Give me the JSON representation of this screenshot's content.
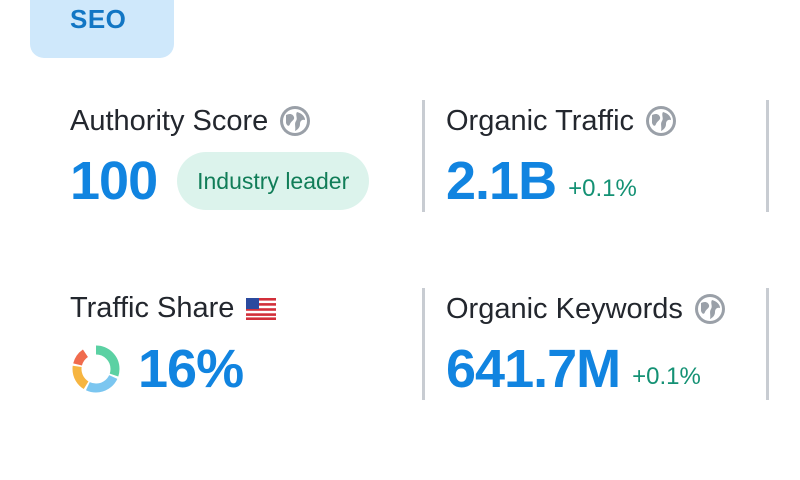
{
  "tab": {
    "label": "SEO"
  },
  "metrics": {
    "authority_score": {
      "title": "Authority Score",
      "value": "100",
      "badge": "Industry leader",
      "icon": "globe-icon"
    },
    "organic_traffic": {
      "title": "Organic Traffic",
      "value": "2.1B",
      "delta": "+0.1%",
      "icon": "globe-icon"
    },
    "traffic_share": {
      "title": "Traffic Share",
      "value": "16%",
      "icon": "us-flag-icon",
      "chart_icon": "donut-chart-icon"
    },
    "organic_keywords": {
      "title": "Organic Keywords",
      "value": "641.7M",
      "delta": "+0.1%",
      "icon": "globe-icon"
    }
  },
  "colors": {
    "accent": "#1184e0",
    "positive": "#149174",
    "badge_bg": "#dcf3ec",
    "tab_bg": "#cfe8fb"
  }
}
